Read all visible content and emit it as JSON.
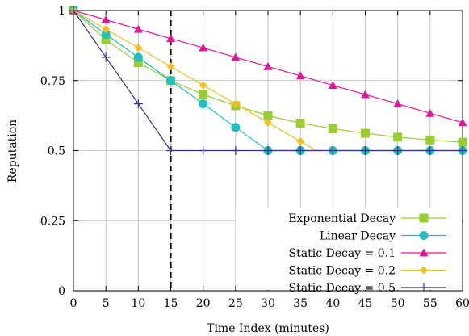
{
  "chart_data": {
    "type": "line",
    "xlabel": "Time Index (minutes)",
    "ylabel": "Reputation",
    "xlim": [
      0,
      60
    ],
    "ylim": [
      0,
      1
    ],
    "x_ticks": [
      "0",
      "5",
      "10",
      "15",
      "20",
      "25",
      "30",
      "35",
      "40",
      "45",
      "50",
      "55",
      "60"
    ],
    "y_ticks": [
      {
        "value": 0,
        "label": "0"
      },
      {
        "value": 0.25,
        "label": "0.25"
      },
      {
        "value": 0.5,
        "label": "0.5"
      },
      {
        "value": 0.75,
        "label": "0.75"
      },
      {
        "value": 1,
        "label": "1"
      }
    ],
    "grid": true,
    "legend_position": "bottom-right",
    "marker_line": {
      "x": 15,
      "style": "dashed"
    },
    "series": [
      {
        "name": "Exponential Decay",
        "color": "#9ACD32",
        "marker": "square",
        "x": [
          0,
          5,
          10,
          15,
          20,
          25,
          30,
          35,
          40,
          45,
          50,
          55,
          60
        ],
        "y": [
          1,
          0.895,
          0.814,
          0.75,
          0.7,
          0.66,
          0.625,
          0.598,
          0.578,
          0.562,
          0.548,
          0.538,
          0.53
        ]
      },
      {
        "name": "Linear Decay",
        "color": "#20C0C0",
        "marker": "circle",
        "x": [
          0,
          5,
          10,
          15,
          20,
          25,
          30,
          35,
          40,
          45,
          50,
          55,
          60
        ],
        "y": [
          1,
          0.915,
          0.833,
          0.75,
          0.667,
          0.583,
          0.5,
          0.5,
          0.5,
          0.5,
          0.5,
          0.5,
          0.5
        ]
      },
      {
        "name": "Static Decay = 0.1",
        "color": "#E0179B",
        "marker": "triangle",
        "x": [
          0,
          5,
          10,
          15,
          20,
          25,
          30,
          35,
          40,
          45,
          50,
          55,
          60
        ],
        "y": [
          1,
          0.967,
          0.933,
          0.9,
          0.867,
          0.833,
          0.8,
          0.767,
          0.733,
          0.7,
          0.667,
          0.633,
          0.6
        ]
      },
      {
        "name": "Static Decay = 0.2",
        "color": "#F0C020",
        "marker": "diamond",
        "x": [
          0,
          5,
          10,
          15,
          20,
          25,
          30,
          35,
          37.5
        ],
        "y": [
          1,
          0.933,
          0.867,
          0.8,
          0.733,
          0.667,
          0.6,
          0.533,
          0.5
        ]
      },
      {
        "name": "Static Decay = 0.5",
        "color": "#3A2A8A",
        "marker": "plus",
        "x": [
          0,
          5,
          10,
          15,
          20,
          25,
          30,
          35,
          40,
          45,
          50,
          55,
          60
        ],
        "y": [
          1,
          0.833,
          0.667,
          0.5,
          0.5,
          0.5,
          0.5,
          0.5,
          0.5,
          0.5,
          0.5,
          0.5,
          0.5
        ]
      }
    ]
  }
}
